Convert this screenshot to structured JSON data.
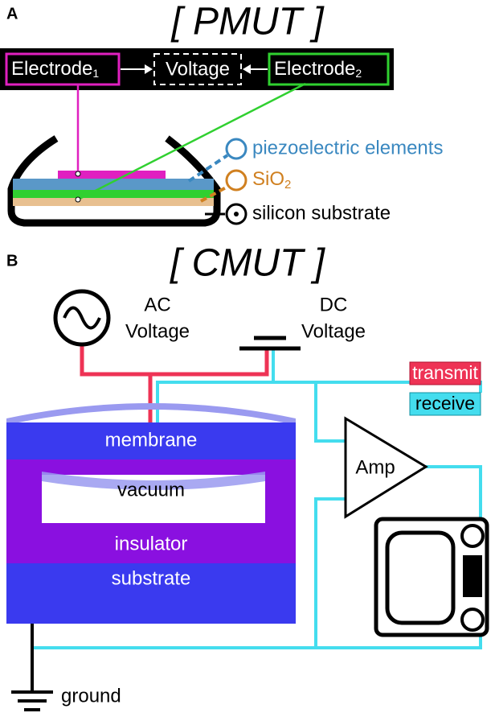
{
  "panel_a": {
    "label": "A",
    "title": "[ PMUT ]",
    "electrode_1": {
      "text": "Electrode",
      "sub": "1"
    },
    "voltage": "Voltage",
    "electrode_2": {
      "text": "Electrode",
      "sub": "2"
    },
    "legend": {
      "piezo": "piezoelectric elements",
      "sio2": {
        "text": "SiO",
        "sub": "2"
      },
      "silicon": "silicon substrate"
    }
  },
  "panel_b": {
    "label": "B",
    "title": "[ CMUT ]",
    "ac_voltage": [
      "AC",
      "Voltage"
    ],
    "dc_voltage": [
      "DC",
      "Voltage"
    ],
    "transmit": "transmit",
    "receive": "receive",
    "membrane": "membrane",
    "vacuum": "vacuum",
    "insulator": "insulator",
    "substrate": "substrate",
    "amp": "Amp",
    "ground": "ground"
  }
}
